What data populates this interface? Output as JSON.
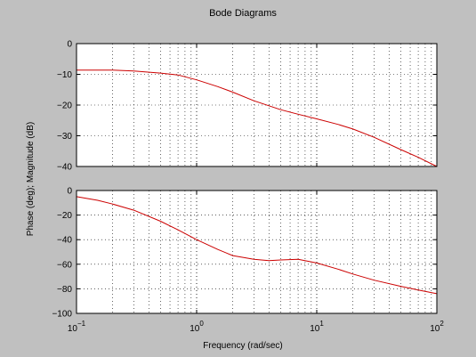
{
  "chart_data": [
    {
      "type": "line",
      "title": "Bode Diagrams",
      "xlabel": "",
      "ylabel": "Phase (deg); Magnitude (dB)",
      "xscale": "log",
      "xlim": [
        0.1,
        100
      ],
      "ylim": [
        -40,
        0
      ],
      "yticks": [
        "0",
        "−10",
        "−20",
        "−30",
        "−40"
      ],
      "grid": true,
      "series": [
        {
          "color": "#cc0000",
          "x": [
            0.1,
            0.2,
            0.3,
            0.5,
            0.7,
            1.0,
            1.5,
            2.0,
            3.0,
            5.0,
            7.0,
            10,
            15,
            20,
            30,
            50,
            70,
            100
          ],
          "values": [
            -8.6,
            -8.6,
            -8.9,
            -9.6,
            -10.2,
            -11.8,
            -14.0,
            -15.8,
            -18.6,
            -21.5,
            -23.0,
            -24.5,
            -26.3,
            -27.8,
            -30.5,
            -34.5,
            -37.0,
            -40.0
          ]
        }
      ]
    },
    {
      "type": "line",
      "xlabel": "Frequency (rad/sec)",
      "ylabel": "",
      "xscale": "log",
      "xlim": [
        0.1,
        100
      ],
      "ylim": [
        -100,
        0
      ],
      "xticks": [
        {
          "base": "10",
          "exp": "−1"
        },
        {
          "base": "10",
          "exp": "0"
        },
        {
          "base": "10",
          "exp": "1"
        },
        {
          "base": "10",
          "exp": "2"
        }
      ],
      "yticks": [
        "0",
        "−20",
        "−40",
        "−60",
        "−80",
        "−100"
      ],
      "grid": true,
      "series": [
        {
          "color": "#cc0000",
          "x": [
            0.1,
            0.15,
            0.2,
            0.3,
            0.5,
            0.7,
            1.0,
            1.5,
            2.0,
            3.0,
            4.0,
            5.0,
            7.0,
            10,
            15,
            20,
            30,
            50,
            70,
            100
          ],
          "values": [
            -5,
            -8,
            -11,
            -16,
            -25,
            -32,
            -40,
            -48,
            -53,
            -56,
            -57,
            -56.5,
            -56,
            -59,
            -64,
            -68,
            -73,
            -78,
            -81,
            -84
          ]
        }
      ]
    }
  ]
}
